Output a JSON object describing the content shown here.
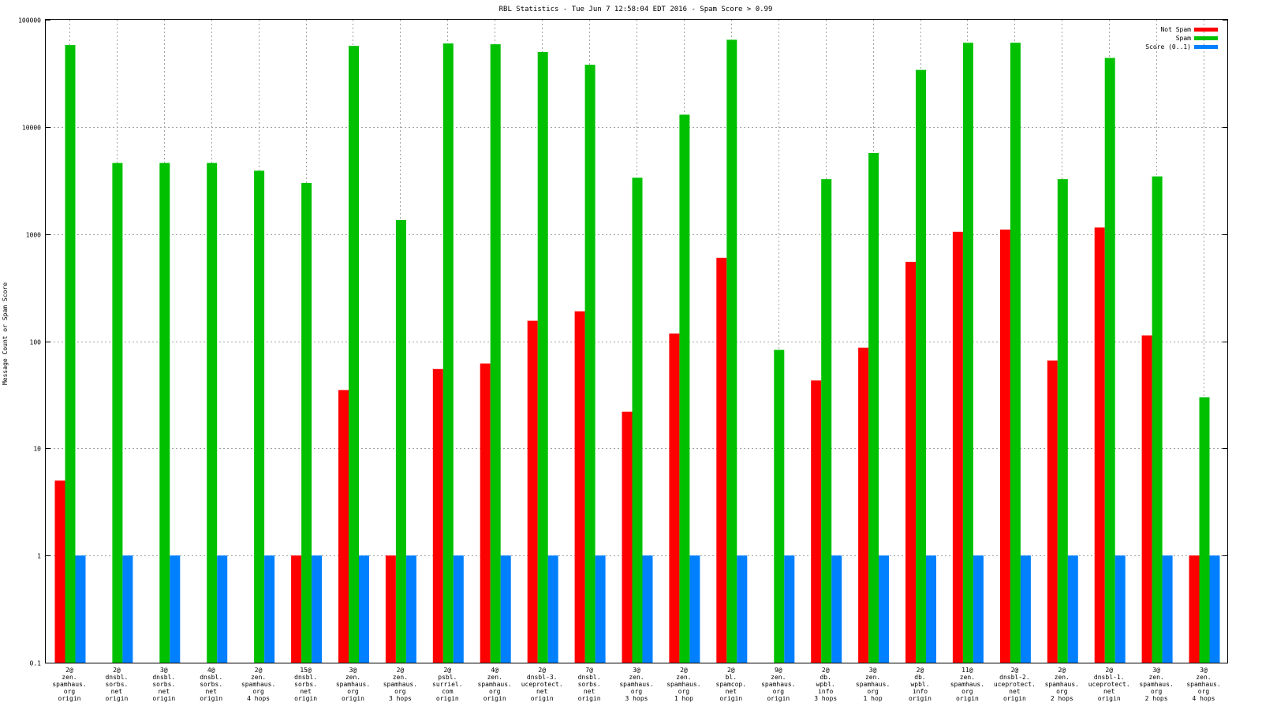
{
  "chart_data": {
    "type": "bar",
    "title": "RBL Statistics - Tue Jun  7 12:58:04 EDT 2016 - Spam Score > 0.99",
    "xlabel": "",
    "ylabel": "Message Count or Spam Score",
    "yscale": "log",
    "ylim": [
      0.1,
      100000
    ],
    "yticks": [
      "0.1",
      "1",
      "10",
      "100",
      "1000",
      "10000",
      "100000"
    ],
    "grid": true,
    "legend_position": "top-right",
    "categories": [
      [
        "2@",
        "zen.",
        "spamhaus.",
        "org",
        "origin"
      ],
      [
        "2@",
        "dnsbl.",
        "sorbs.",
        "net",
        "origin"
      ],
      [
        "3@",
        "dnsbl.",
        "sorbs.",
        "net",
        "origin"
      ],
      [
        "4@",
        "dnsbl.",
        "sorbs.",
        "net",
        "origin"
      ],
      [
        "2@",
        "zen.",
        "spamhaus.",
        "org",
        "4 hops"
      ],
      [
        "15@",
        "dnsbl.",
        "sorbs.",
        "net",
        "origin"
      ],
      [
        "3@",
        "zen.",
        "spamhaus.",
        "org",
        "origin"
      ],
      [
        "2@",
        "zen.",
        "spamhaus.",
        "org",
        "3 hops"
      ],
      [
        "2@",
        "psbl.",
        "surriel.",
        "com",
        "origin"
      ],
      [
        "4@",
        "zen.",
        "spamhaus.",
        "org",
        "origin"
      ],
      [
        "2@",
        "dnsbl-3.",
        "uceprotect.",
        "net",
        "origin"
      ],
      [
        "7@",
        "dnsbl.",
        "sorbs.",
        "net",
        "origin"
      ],
      [
        "3@",
        "zen.",
        "spamhaus.",
        "org",
        "3 hops"
      ],
      [
        "2@",
        "zen.",
        "spamhaus.",
        "org",
        "1 hop"
      ],
      [
        "2@",
        "bl.",
        "spamcop.",
        "net",
        "origin"
      ],
      [
        "9@",
        "zen.",
        "spamhaus.",
        "org",
        "origin"
      ],
      [
        "2@",
        "db.",
        "wpbl.",
        "info",
        "3 hops"
      ],
      [
        "3@",
        "zen.",
        "spamhaus.",
        "org",
        "1 hop"
      ],
      [
        "2@",
        "db.",
        "wpbl.",
        "info",
        "origin"
      ],
      [
        "11@",
        "zen.",
        "spamhaus.",
        "org",
        "origin"
      ],
      [
        "2@",
        "dnsbl-2.",
        "uceprotect.",
        "net",
        "origin"
      ],
      [
        "2@",
        "zen.",
        "spamhaus.",
        "org",
        "2 hops"
      ],
      [
        "2@",
        "dnsbl-1.",
        "uceprotect.",
        "net",
        "origin"
      ],
      [
        "3@",
        "zen.",
        "spamhaus.",
        "org",
        "2 hops"
      ],
      [
        "3@",
        "zen.",
        "spamhaus.",
        "org",
        "4 hops"
      ]
    ],
    "series": [
      {
        "name": "Not Spam",
        "color": "#ff0000",
        "values": [
          5,
          null,
          null,
          null,
          null,
          1,
          35,
          1,
          55,
          62,
          155,
          190,
          22,
          118,
          600,
          null,
          43,
          87,
          550,
          1050,
          1100,
          66,
          1150,
          113,
          1
        ]
      },
      {
        "name": "Spam",
        "color": "#00c000",
        "values": [
          58000,
          4600,
          4600,
          4600,
          3900,
          3000,
          57000,
          1350,
          60000,
          59000,
          50000,
          38000,
          3350,
          13000,
          65000,
          83,
          3250,
          5700,
          34000,
          61000,
          61000,
          3250,
          44000,
          3450,
          30
        ]
      },
      {
        "name": "Score (0..1)",
        "color": "#0080ff",
        "values": [
          1,
          1,
          1,
          1,
          1,
          1,
          1,
          1,
          1,
          1,
          1,
          1,
          1,
          1,
          1,
          1,
          1,
          1,
          1,
          1,
          1,
          1,
          1,
          1,
          1
        ]
      }
    ]
  }
}
